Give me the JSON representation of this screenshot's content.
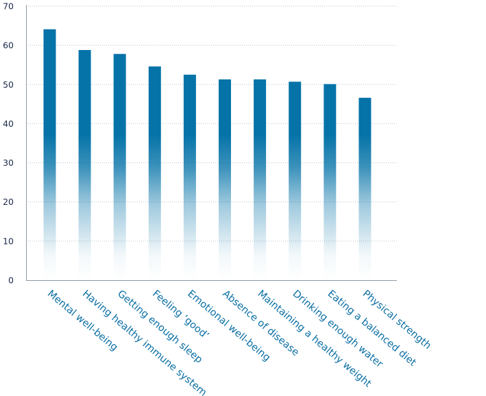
{
  "chart_data": {
    "type": "bar",
    "title": "",
    "xlabel": "",
    "ylabel": "",
    "ylim": [
      0,
      70
    ],
    "yticks": [
      0,
      10,
      20,
      30,
      40,
      50,
      60,
      70
    ],
    "grid": true,
    "bar_color": "#0573a8",
    "categories": [
      "Mental well-being",
      "Having healthy immune system",
      "Getting enough sleep",
      "Feeling ‘good’",
      "Emotional well-being",
      "Absence of disease",
      "Maintaining a healthy weight",
      "Drinking enough water",
      "Eating a balanced diet",
      "Physical strength"
    ],
    "values": [
      64.1,
      58.8,
      57.8,
      54.6,
      52.5,
      51.3,
      51.3,
      50.7,
      50.1,
      46.6
    ]
  }
}
